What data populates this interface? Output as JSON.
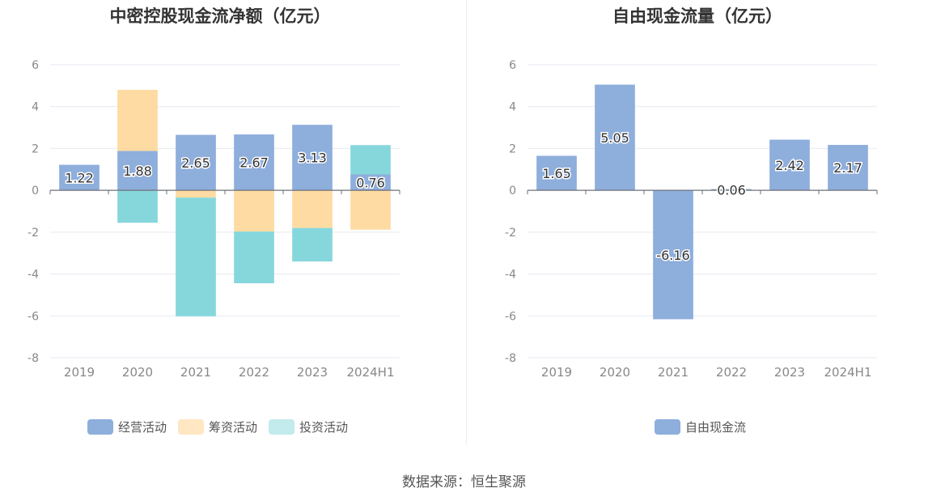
{
  "source_label": "数据来源：恒生聚源",
  "colors": {
    "operating": "#8eaedc",
    "financing": "#fedba2",
    "investing": "#86d7dc",
    "investing_legend": "#c3eaed",
    "free_cash": "#8eaedc"
  },
  "chart_data": [
    {
      "type": "bar",
      "stacked": true,
      "title": "中密控股现金流净额（亿元）",
      "categories": [
        "2019",
        "2020",
        "2021",
        "2022",
        "2023",
        "2024H1"
      ],
      "ylim": [
        -8,
        6
      ],
      "yticks": [
        6,
        4,
        2,
        0,
        -2,
        -4,
        -6,
        -8
      ],
      "grid": true,
      "legend_position": "bottom",
      "series": [
        {
          "name": "经营活动",
          "values": [
            1.22,
            1.88,
            2.65,
            2.67,
            3.13,
            0.76
          ],
          "labels": [
            "1.22",
            "1.88",
            "2.65",
            "2.67",
            "3.13",
            "0.76"
          ]
        },
        {
          "name": "筹资活动",
          "values": [
            0,
            2.92,
            -0.35,
            -1.97,
            -1.8,
            -1.88
          ]
        },
        {
          "name": "投资活动",
          "values": [
            0,
            -1.55,
            -5.67,
            -2.47,
            -1.6,
            1.4
          ]
        }
      ]
    },
    {
      "type": "bar",
      "title": "自由现金流量（亿元）",
      "categories": [
        "2019",
        "2020",
        "2021",
        "2022",
        "2023",
        "2024H1"
      ],
      "ylim": [
        -8,
        6
      ],
      "yticks": [
        6,
        4,
        2,
        0,
        -2,
        -4,
        -6,
        -8
      ],
      "grid": true,
      "legend_position": "bottom",
      "series": [
        {
          "name": "自由现金流",
          "values": [
            1.65,
            5.05,
            -6.16,
            0.06,
            2.42,
            2.17
          ],
          "labels": [
            "1.65",
            "5.05",
            "-6.16",
            "0.06",
            "2.42",
            "2.17"
          ]
        }
      ]
    }
  ]
}
